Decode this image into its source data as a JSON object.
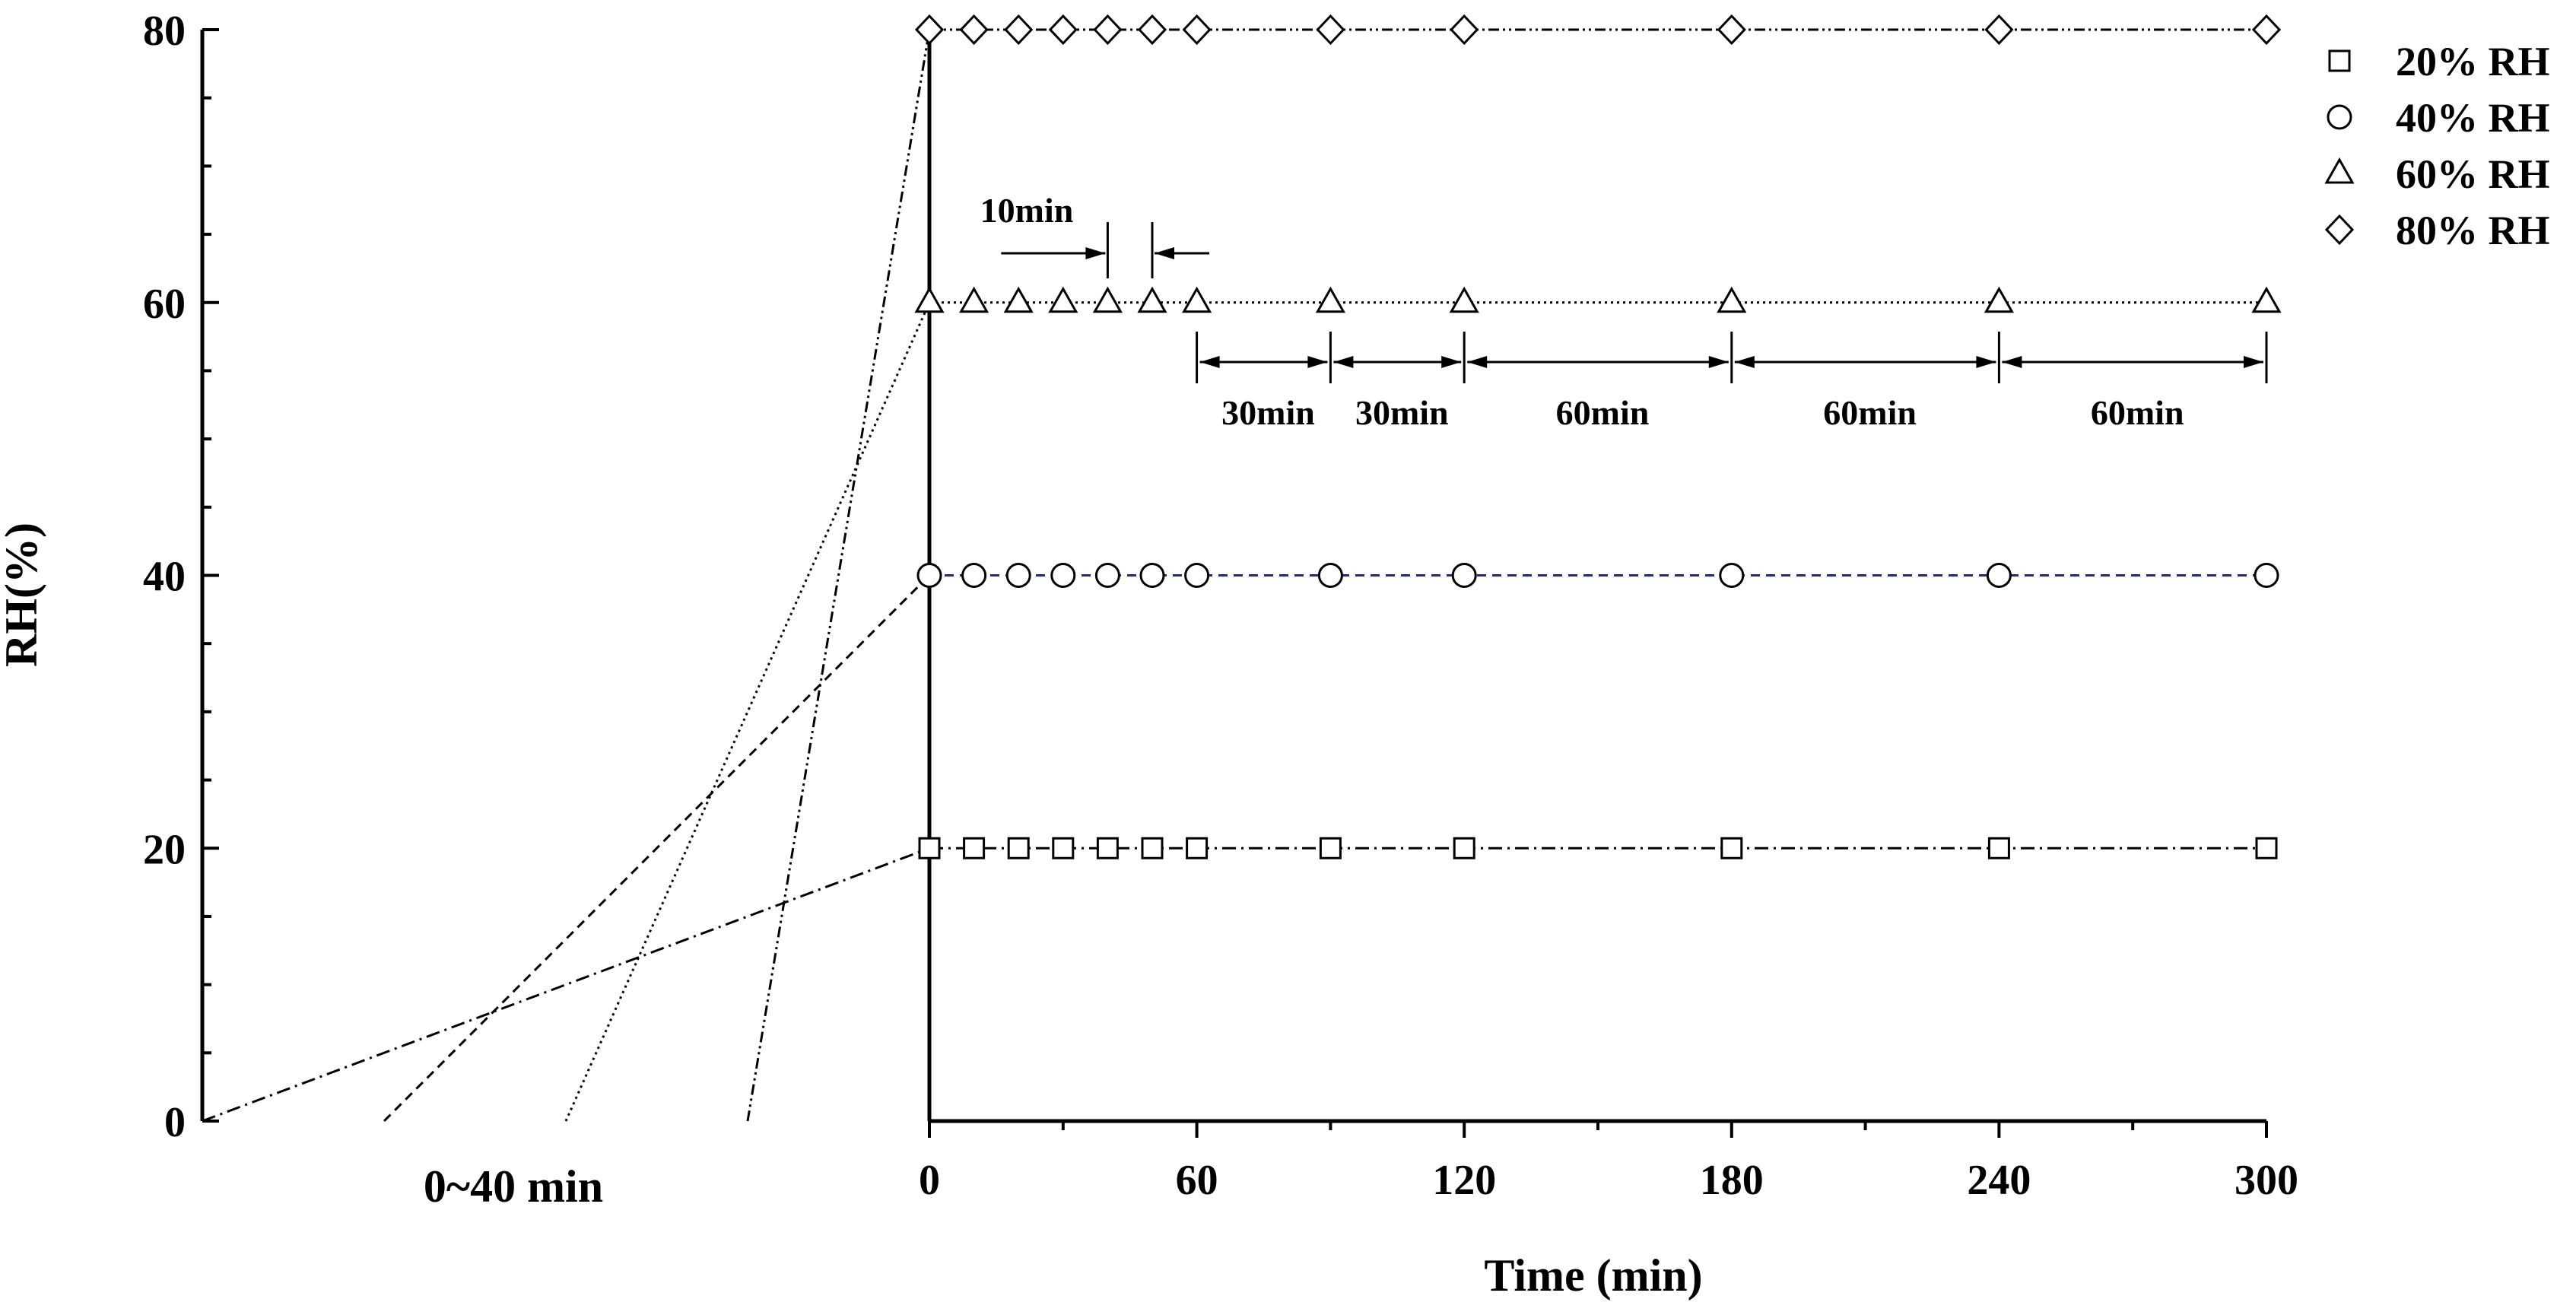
{
  "chart_data": {
    "type": "line",
    "title": "",
    "xlabel": "Time (min)",
    "ylabel": "RH(%)",
    "ramp_label": "0~40 min",
    "xlim": [
      0,
      300
    ],
    "ylim": [
      0,
      80
    ],
    "x_ticks": [
      "0",
      "60",
      "120",
      "180",
      "240",
      "300"
    ],
    "y_ticks": [
      "0",
      "20",
      "40",
      "60",
      "80"
    ],
    "x": [
      0,
      10,
      20,
      30,
      40,
      50,
      60,
      90,
      120,
      180,
      240,
      300
    ],
    "ramp_minutes": [
      40,
      30,
      20,
      10
    ],
    "series": [
      {
        "name": "20% RH",
        "marker": "square",
        "rh": 20,
        "line_style": "dash-dot",
        "line_color": "#000000"
      },
      {
        "name": "40% RH",
        "marker": "circle",
        "rh": 40,
        "line_style": "dashed",
        "line_color": "#1f2a80"
      },
      {
        "name": "60% RH",
        "marker": "triangle",
        "rh": 60,
        "line_style": "dotted",
        "line_color": "#000000"
      },
      {
        "name": "80% RH",
        "marker": "diamond",
        "rh": 80,
        "line_style": "dash-dot-dot",
        "line_color": "#000000"
      }
    ],
    "annotations": {
      "small_interval": {
        "label": "10min",
        "from": 40,
        "to": 50
      },
      "intervals": [
        {
          "label": "30min",
          "from": 60,
          "to": 90
        },
        {
          "label": "30min",
          "from": 90,
          "to": 120
        },
        {
          "label": "60min",
          "from": 120,
          "to": 180
        },
        {
          "label": "60min",
          "from": 180,
          "to": 240
        },
        {
          "label": "60min",
          "from": 240,
          "to": 300
        }
      ]
    },
    "grid": false,
    "legend_position": "top-right"
  }
}
